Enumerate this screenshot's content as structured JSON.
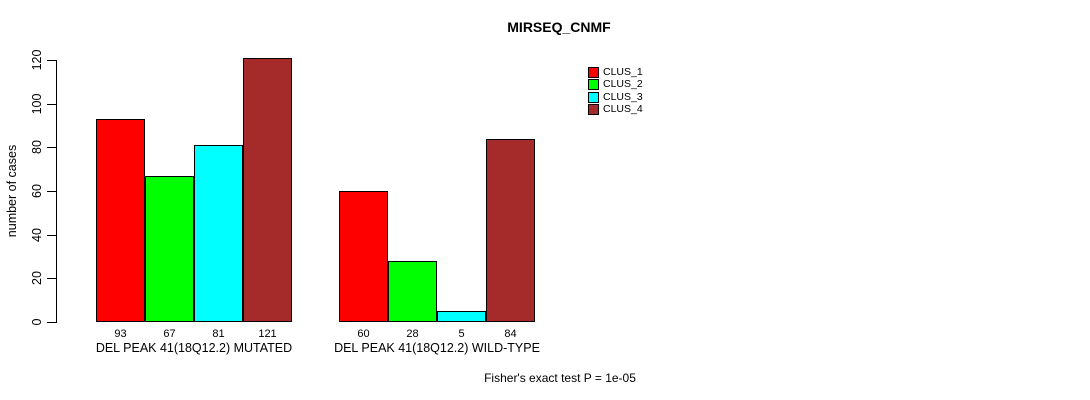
{
  "chart_data": {
    "type": "bar",
    "title": "MIRSEQ_CNMF",
    "xlabel": "",
    "ylabel": "number of cases",
    "ylim": [
      0,
      120
    ],
    "yticks": [
      0,
      20,
      40,
      60,
      80,
      100,
      120
    ],
    "grid": false,
    "legend_position": "top-right",
    "series": [
      {
        "name": "CLUS_1",
        "color": "#FF0000"
      },
      {
        "name": "CLUS_2",
        "color": "#00FF00"
      },
      {
        "name": "CLUS_3",
        "color": "#00FFFF"
      },
      {
        "name": "CLUS_4",
        "color": "#A52A2A"
      }
    ],
    "categories": [
      "DEL PEAK 41(18Q12.2) MUTATED",
      "DEL PEAK 41(18Q12.2) WILD-TYPE"
    ],
    "values": [
      [
        93,
        67,
        81,
        121
      ],
      [
        60,
        28,
        5,
        84
      ]
    ],
    "bar_value_labels": [
      [
        "93",
        "67",
        "81",
        "121"
      ],
      [
        "60",
        "28",
        "5",
        "84"
      ]
    ],
    "annotation": "Fisher's exact test P = 1e-05"
  }
}
